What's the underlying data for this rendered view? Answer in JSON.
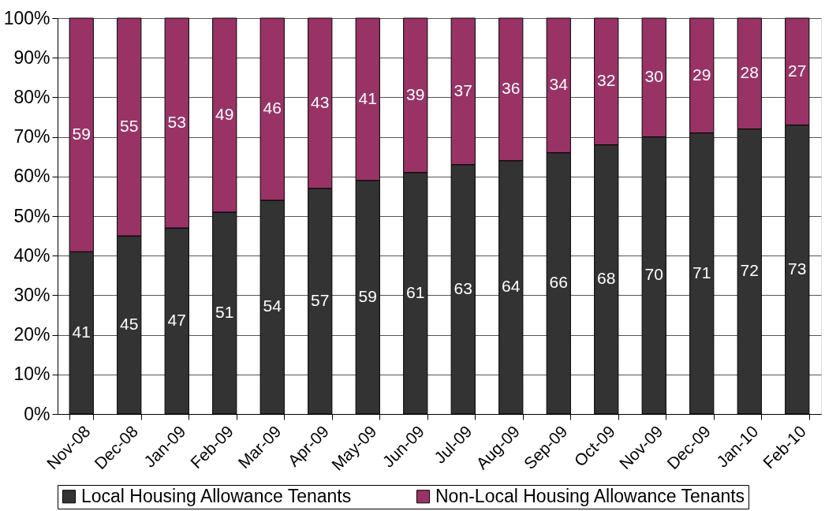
{
  "chart_data": {
    "type": "bar",
    "stacked": true,
    "categories": [
      "Nov-08",
      "Dec-08",
      "Jan-09",
      "Feb-09",
      "Mar-09",
      "Apr-09",
      "May-09",
      "Jun-09",
      "Jul-09",
      "Aug-09",
      "Sep-09",
      "Oct-09",
      "Nov-09",
      "Dec-09",
      "Jan-10",
      "Feb-10"
    ],
    "series": [
      {
        "name": "Local Housing Allowance Tenants",
        "color": "#333333",
        "values": [
          41,
          45,
          47,
          51,
          54,
          57,
          59,
          61,
          63,
          64,
          66,
          68,
          70,
          71,
          72,
          73
        ]
      },
      {
        "name": "Non-Local Housing Allowance Tenants",
        "color": "#993366",
        "values": [
          59,
          55,
          53,
          49,
          46,
          43,
          41,
          39,
          37,
          36,
          34,
          32,
          30,
          29,
          28,
          27
        ]
      }
    ],
    "ylim": [
      0,
      100
    ],
    "yticks": [
      {
        "value": 0,
        "label": "0%"
      },
      {
        "value": 10,
        "label": "10%"
      },
      {
        "value": 20,
        "label": "20%"
      },
      {
        "value": 30,
        "label": "30%"
      },
      {
        "value": 40,
        "label": "40%"
      },
      {
        "value": 50,
        "label": "50%"
      },
      {
        "value": 60,
        "label": "60%"
      },
      {
        "value": 70,
        "label": "70%"
      },
      {
        "value": 80,
        "label": "80%"
      },
      {
        "value": 90,
        "label": "90%"
      },
      {
        "value": 100,
        "label": "100%"
      }
    ],
    "grid": "y",
    "legend": "bottom",
    "data_labels": true
  }
}
